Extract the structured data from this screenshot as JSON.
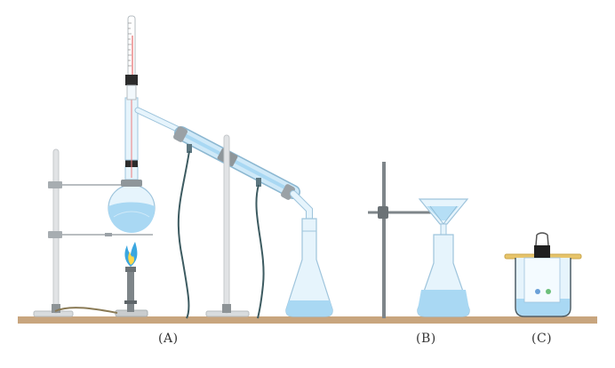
{
  "labels": {
    "a": "(A)",
    "b": "(B)",
    "c": "(C)"
  },
  "colors": {
    "bench": "#c8a57e",
    "liquid": "#a9d8f3",
    "glass": "#e6f4fc",
    "glass_outline": "#9ec4dc",
    "metal": "#9aa1a6",
    "rod": "#cfd2d4",
    "flame": "#3aa6e0",
    "hose": "#3d5b61"
  }
}
